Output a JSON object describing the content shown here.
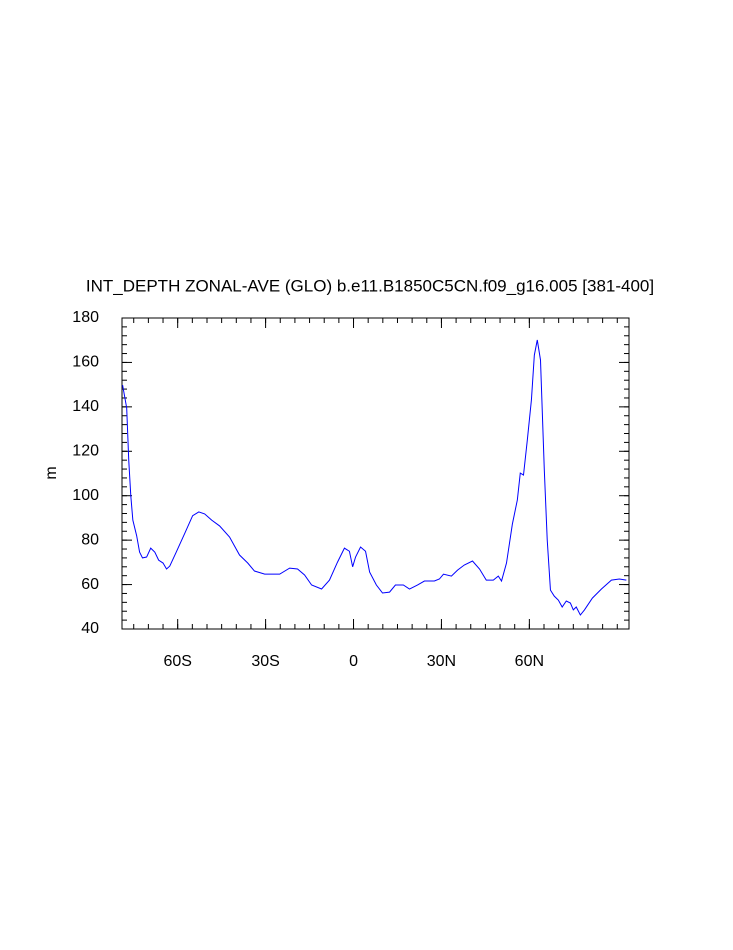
{
  "chart_data": {
    "type": "line",
    "title": "INT_DEPTH ZONAL-AVE (GLO) b.e11.B1850C5CN.f09_g16.005 [381-400]",
    "y_label": "m",
    "xlim": [
      -79,
      94
    ],
    "xticks": [
      {
        "value": -60,
        "label": "60S"
      },
      {
        "value": -30,
        "label": "30S"
      },
      0,
      {
        "value": 30,
        "label": "30N"
      },
      {
        "value": 60,
        "label": "60N"
      }
    ],
    "ylim": [
      40,
      180
    ],
    "yticks": [
      40,
      60,
      80,
      100,
      120,
      140,
      160,
      180
    ],
    "series": [
      {
        "color": "#0000ff",
        "x": [
          -78.8,
          -77.4,
          -76.7,
          -76,
          -75.3,
          -74,
          -73,
          -72,
          -70.6,
          -69.2,
          -67.8,
          -66.5,
          -65,
          -63.8,
          -62.7,
          -60.7,
          -57.6,
          -54.9,
          -52.8,
          -50.8,
          -48.4,
          -45.7,
          -42.3,
          -38.9,
          -36.1,
          -33.8,
          -30.3,
          -25.2,
          -21.8,
          -19.1,
          -16.7,
          -14.3,
          -10.9,
          -8.2,
          -5.5,
          -3.1,
          -1.4,
          -0.3,
          0.7,
          2.4,
          4.1,
          5.5,
          7.8,
          9.9,
          12.3,
          14.3,
          17,
          19.1,
          21.8,
          24.2,
          27.6,
          29.3,
          30.7,
          33.4,
          35.5,
          37.8,
          40.6,
          43,
          45.3,
          47.7,
          49.4,
          50.5,
          52.2,
          54.2,
          55.9,
          56.9,
          58,
          59.3,
          60.7,
          61.7,
          62.7,
          63.8,
          65.1,
          66.1,
          67.2,
          68.5,
          69.9,
          71.2,
          72.6,
          74,
          75,
          76,
          77.4,
          78.8,
          81.5,
          84.6,
          88,
          90.7,
          93.1
        ],
        "values": [
          149.8,
          139.5,
          116,
          100,
          89,
          82,
          74.6,
          72,
          72.4,
          76.4,
          74.6,
          71,
          69.7,
          67,
          68.3,
          74,
          83,
          91,
          92.7,
          91.8,
          89,
          86.4,
          81.4,
          73.3,
          69.7,
          66.1,
          64.7,
          64.7,
          67.4,
          67,
          64.3,
          59.8,
          58,
          62,
          70,
          76.4,
          75,
          68,
          72.4,
          76.9,
          75,
          65.6,
          59.8,
          56.2,
          56.6,
          59.8,
          59.8,
          58,
          59.8,
          61.6,
          61.6,
          62.5,
          64.7,
          63.8,
          66.5,
          68.8,
          70.6,
          67,
          62,
          62,
          63.8,
          61.6,
          69.7,
          87.2,
          98.1,
          110.2,
          109.3,
          125,
          143.1,
          163.3,
          170.1,
          161.1,
          111.6,
          80,
          57.5,
          54.8,
          53,
          49.9,
          52.6,
          51.7,
          48.6,
          49.9,
          46.3,
          48.6,
          53.9,
          58,
          62,
          62.5,
          62
        ]
      }
    ]
  }
}
